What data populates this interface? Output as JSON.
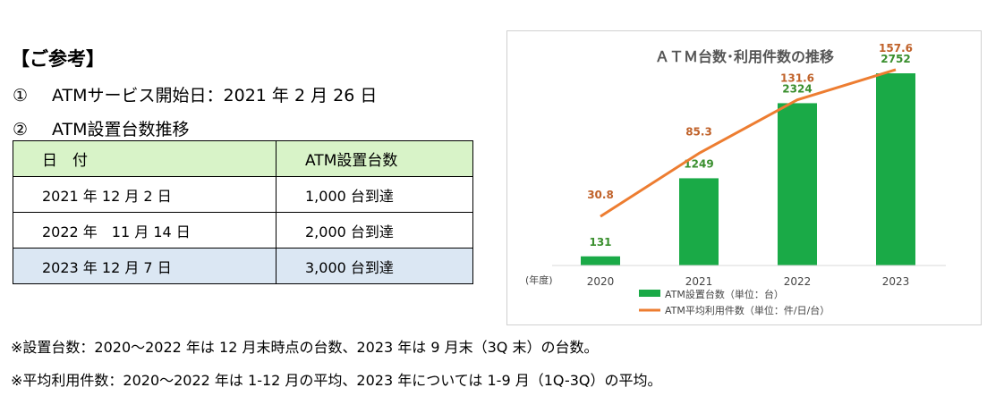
{
  "reference": {
    "title": "【ご参考】",
    "item1_num": "①",
    "item1_text": "ATMサービス開始日：2021 年 2 月 26 日",
    "item2_num": "②",
    "item2_text": "ATM設置台数推移"
  },
  "table": {
    "headers": [
      "日　付",
      "ATM設置台数"
    ],
    "rows": [
      [
        "2021 年 12 月 2 日",
        "1,000 台到達"
      ],
      [
        "2022 年　11 月 14 日",
        "2,000 台到達"
      ],
      [
        "2023 年 12 月 7 日",
        "3,000 台到達"
      ]
    ]
  },
  "notes": [
    "※設置台数：2020～2022 年は 12 月末時点の台数、2023 年は 9 月末（3Q 末）の台数。",
    "※平均利用件数：2020～2022 年は 1-12 月の平均、2023 年については 1-9 月（1Q-3Q）の平均。"
  ],
  "chart_data": {
    "type": "bar+line",
    "title": "ＡＴＭ台数･利用件数の推移",
    "x_unit_label": "(年度)",
    "categories": [
      "2020",
      "2021",
      "2022",
      "2023"
    ],
    "series": [
      {
        "name": "ATM設置台数（単位：台）",
        "type": "bar",
        "color": "#1aaa47",
        "label_color": "#3a8f2e",
        "values": [
          131,
          1249,
          2324,
          2752
        ],
        "labels": [
          "131",
          "1249",
          "2324",
          "2752"
        ],
        "ylim": [
          0,
          3200
        ]
      },
      {
        "name": "ATM平均利用件数（単位：件/日/台）",
        "type": "line",
        "color": "#ed7d31",
        "label_color": "#c0622a",
        "values": [
          30.8,
          85.3,
          131.6,
          157.6
        ],
        "labels": [
          "30.8",
          "85.3",
          "131.6",
          "157.6"
        ],
        "ylim": [
          0,
          180
        ]
      }
    ],
    "grid": false,
    "legend_position": "bottom"
  }
}
